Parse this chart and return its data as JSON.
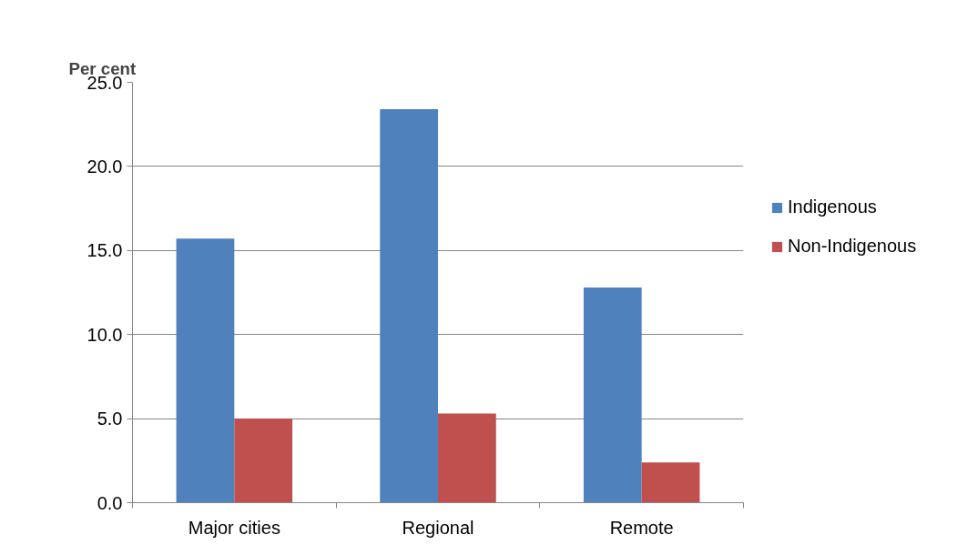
{
  "chart_data": {
    "type": "bar",
    "ylabel": "Per cent",
    "categories": [
      "Major cities",
      "Regional",
      "Remote"
    ],
    "series": [
      {
        "name": "Indigenous",
        "color": "#4f81bd",
        "values": [
          15.7,
          23.4,
          12.8
        ]
      },
      {
        "name": "Non-Indigenous",
        "color": "#c0504d",
        "values": [
          5.0,
          5.3,
          2.4
        ]
      }
    ],
    "ylim": [
      0,
      25
    ],
    "yticks": [
      {
        "value": 0,
        "label": "0.0"
      },
      {
        "value": 5,
        "label": "5.0"
      },
      {
        "value": 10,
        "label": "10.0"
      },
      {
        "value": 15,
        "label": "15.0"
      },
      {
        "value": 20,
        "label": "20.0"
      },
      {
        "value": 25,
        "label": "25.0"
      }
    ],
    "grid": "y",
    "legend": "right"
  }
}
